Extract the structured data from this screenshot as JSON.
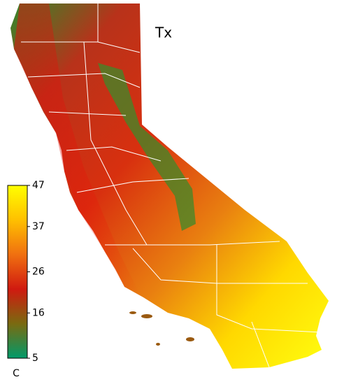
{
  "map": {
    "title": "Tx",
    "colorbar": {
      "lim": [
        5,
        47
      ],
      "ticks": [
        5,
        16,
        26,
        37,
        47
      ],
      "unit": "C",
      "colors": [
        "#009a6a",
        "#7a6a10",
        "#d01a10",
        "#f07010",
        "#ffc000",
        "#ffff00"
      ]
    }
  }
}
